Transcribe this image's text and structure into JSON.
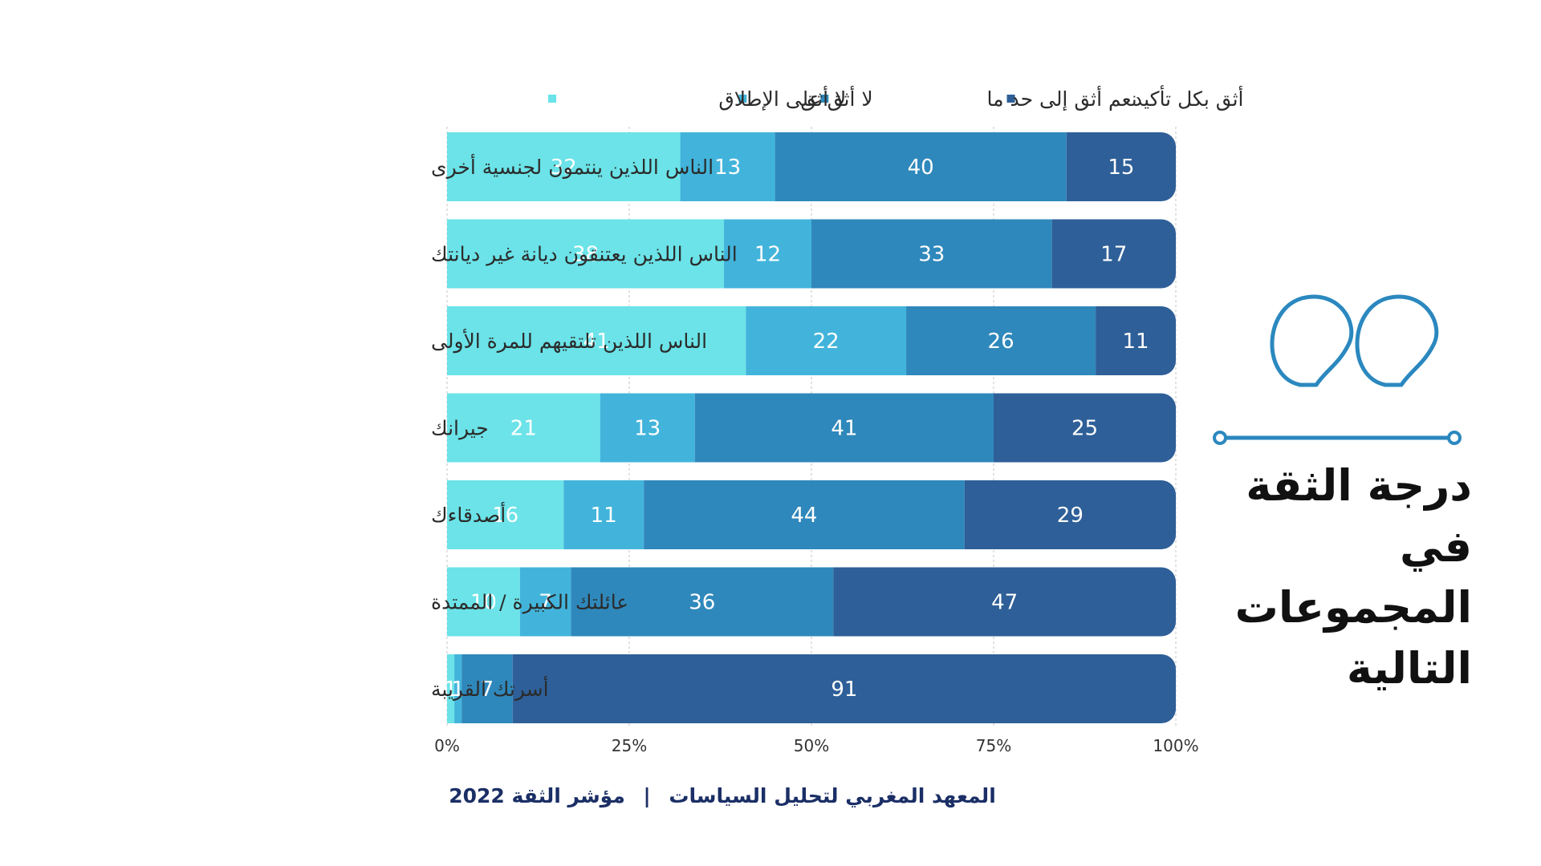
{
  "colors": {
    "not_at_all": "#6be3e8",
    "no_trust": "#42b4db",
    "somewhat": "#2f88bb",
    "definitely": "#2e5f98",
    "accent": "#2b88bf"
  },
  "legend": [
    {
      "label": "أثق بكل تأكيد",
      "color": "#2e5f98"
    },
    {
      "label": "نعم أثق إلى حد ما",
      "color": "#2f88bb"
    },
    {
      "label": "لا أثق",
      "color": "#42b4db"
    },
    {
      "label": "لا أثق على الإطلاق",
      "color": "#6be3e8"
    }
  ],
  "side_title": "درجة الثقة في المجموعات التالية",
  "source": {
    "institute": "المعهد المغربي لتحليل السياسات",
    "separator": "|",
    "index": "مؤشر الثقة 2022"
  },
  "chart_data": {
    "type": "bar",
    "orientation": "horizontal",
    "stacked": "100%",
    "categories": [
      "الناس اللذين ينتمون لجنسية أخرى",
      "الناس اللذين يعتنقون ديانة غير ديانتك",
      "الناس اللذين تلتقيهم للمرة الأولى",
      "جيرانك",
      "أصدقاءك",
      "عائلتك الكبيرة / الممتدة",
      "أسرتك القريبة"
    ],
    "series": [
      {
        "name": "لا أثق على الإطلاق",
        "color": "#6be3e8",
        "values": [
          32,
          38,
          41,
          21,
          16,
          10,
          1
        ]
      },
      {
        "name": "لا أثق",
        "color": "#42b4db",
        "values": [
          13,
          12,
          22,
          13,
          11,
          7,
          1
        ]
      },
      {
        "name": "نعم أثق إلى حد ما",
        "color": "#2f88bb",
        "values": [
          40,
          33,
          26,
          41,
          44,
          36,
          7
        ]
      },
      {
        "name": "أثق بكل تأكيد",
        "color": "#2e5f98",
        "values": [
          15,
          17,
          11,
          25,
          29,
          47,
          91
        ]
      }
    ],
    "xlim": [
      0,
      100
    ],
    "xticks": [
      "0%",
      "25%",
      "50%",
      "75%",
      "100%"
    ],
    "grid": true,
    "legend_position": "top"
  }
}
